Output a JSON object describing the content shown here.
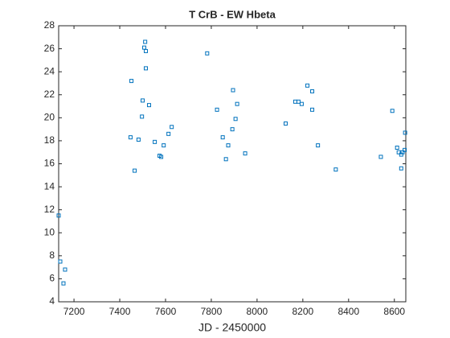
{
  "chart_data": {
    "type": "scatter",
    "title": "T CrB - EW Hbeta",
    "xlabel": "JD - 2450000",
    "color": "#0072bd",
    "marker": "square",
    "x": [
      7133,
      7140,
      7161,
      7154,
      7447,
      7451,
      7465,
      7482,
      7500,
      7497,
      7511,
      7507,
      7514,
      7514,
      7528,
      7553,
      7574,
      7581,
      7592,
      7613,
      7627,
      7782,
      7825,
      7850,
      7864,
      7874,
      7892,
      7895,
      7906,
      7913,
      7948,
      8125,
      8167,
      8181,
      8195,
      8220,
      8241,
      8241,
      8266,
      8344,
      8541,
      8591,
      8612,
      8619,
      8630,
      8630,
      8636,
      8647,
      8645
    ],
    "values": [
      11.5,
      7.5,
      6.8,
      5.6,
      18.3,
      23.2,
      15.4,
      18.1,
      21.5,
      20.1,
      26.6,
      26.1,
      25.8,
      24.3,
      21.1,
      17.9,
      16.7,
      16.6,
      17.6,
      18.6,
      19.2,
      25.6,
      20.7,
      18.3,
      16.4,
      17.6,
      19.0,
      22.4,
      19.9,
      21.2,
      16.9,
      19.5,
      21.4,
      21.4,
      21.2,
      22.8,
      22.3,
      20.7,
      17.6,
      15.5,
      16.6,
      20.6,
      17.4,
      17.0,
      16.8,
      15.6,
      17.0,
      18.7,
      17.2
    ],
    "xlim": [
      7133,
      8650
    ],
    "ylim": [
      4,
      28
    ],
    "xticks": [
      7200,
      7400,
      7600,
      7800,
      8000,
      8200,
      8400,
      8600
    ],
    "yticks": [
      4,
      6,
      8,
      10,
      12,
      14,
      16,
      18,
      20,
      22,
      24,
      26,
      28
    ],
    "grid": false
  }
}
